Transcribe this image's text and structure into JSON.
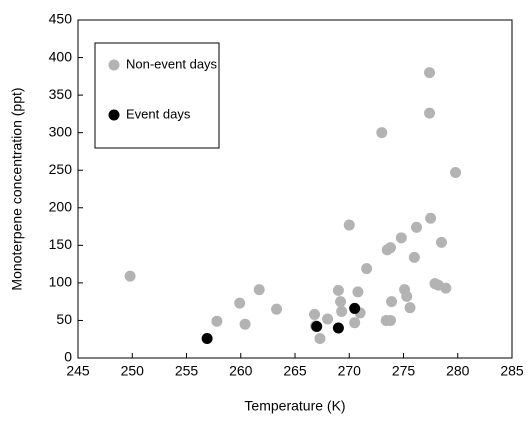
{
  "chart_data": {
    "type": "scatter",
    "xlabel": "Temperature (K)",
    "ylabel": "Monoterpene concentration (ppt)",
    "xlim": [
      245,
      285
    ],
    "ylim": [
      0,
      450
    ],
    "xticks": [
      245,
      250,
      255,
      260,
      265,
      270,
      275,
      280,
      285
    ],
    "yticks": [
      0,
      50,
      100,
      150,
      200,
      250,
      300,
      350,
      400,
      450
    ],
    "legend": "upper left",
    "series": [
      {
        "name": "Non-event days",
        "color": "#b3b3b3",
        "x": [
          249.8,
          257.8,
          259.9,
          260.4,
          261.7,
          263.3,
          266.8,
          266.9,
          267.3,
          268.0,
          269.0,
          269.2,
          269.3,
          270.0,
          270.5,
          270.8,
          271.0,
          271.6,
          273.0,
          273.4,
          273.5,
          273.8,
          273.8,
          273.9,
          274.8,
          275.1,
          275.3,
          275.6,
          276.0,
          276.2,
          277.4,
          277.4,
          277.5,
          277.9,
          278.2,
          278.5,
          278.9,
          279.8
        ],
        "values": [
          109,
          49,
          73,
          45,
          91,
          65,
          58,
          43,
          26,
          52,
          90,
          75,
          62,
          177,
          47,
          88,
          60,
          119,
          300,
          50,
          144,
          147,
          50,
          75,
          160,
          91,
          82,
          67,
          134,
          174,
          380,
          326,
          186,
          99,
          97,
          154,
          93,
          247
        ]
      },
      {
        "name": "Event days",
        "color": "#000000",
        "x": [
          256.9,
          267.0,
          269.0,
          270.5
        ],
        "values": [
          26,
          42,
          40,
          66
        ]
      }
    ]
  }
}
